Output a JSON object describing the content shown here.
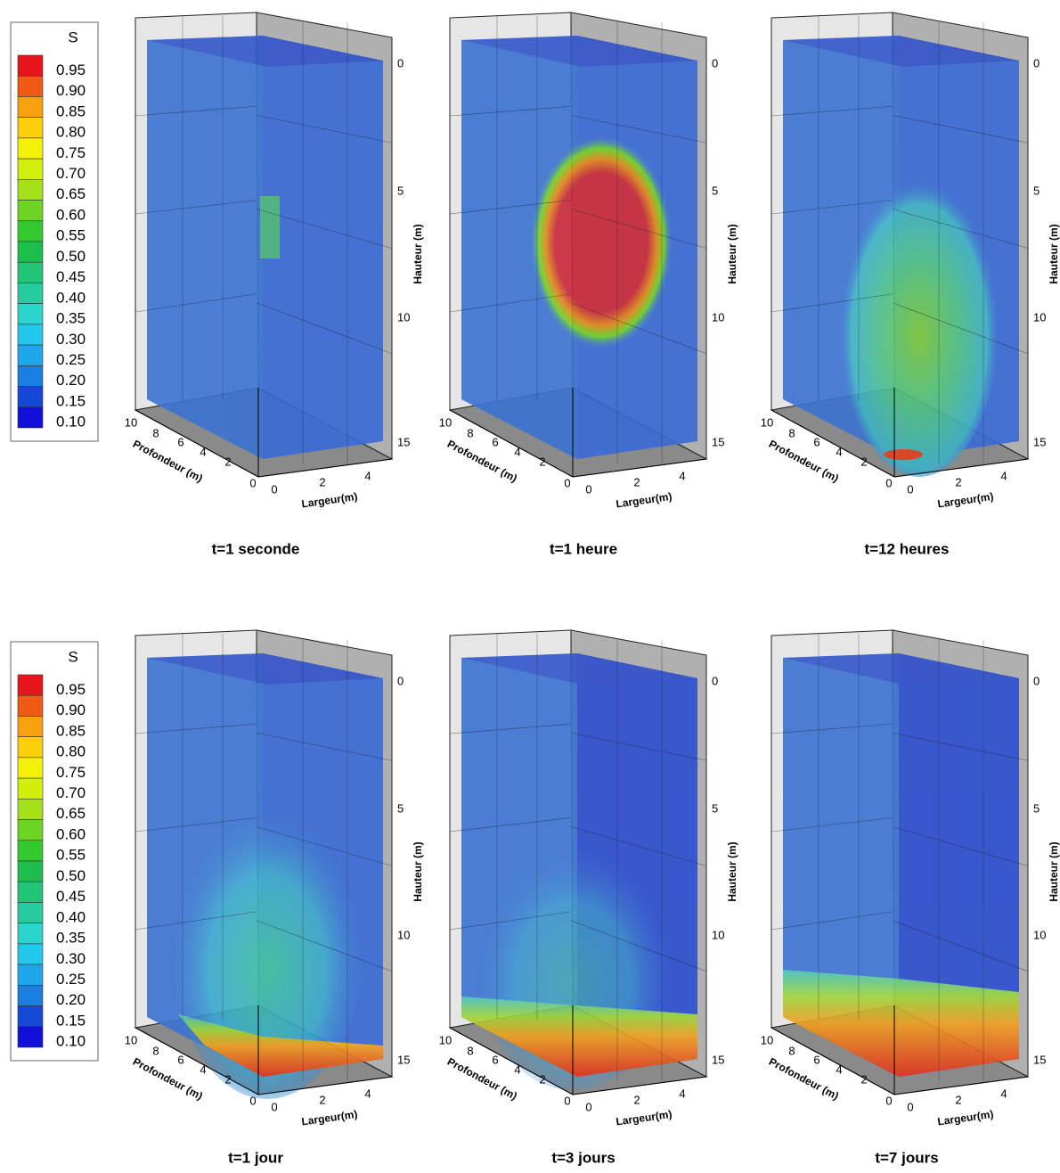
{
  "legend": {
    "title": "S",
    "levels": [
      {
        "label": "0.95",
        "color": "#e8141c"
      },
      {
        "label": "0.90",
        "color": "#f05a14"
      },
      {
        "label": "0.85",
        "color": "#f7a10e"
      },
      {
        "label": "0.80",
        "color": "#fbcf0a"
      },
      {
        "label": "0.75",
        "color": "#f4f00a"
      },
      {
        "label": "0.70",
        "color": "#d2ef0c"
      },
      {
        "label": "0.65",
        "color": "#a5e01a"
      },
      {
        "label": "0.60",
        "color": "#6dd424"
      },
      {
        "label": "0.55",
        "color": "#33c92f"
      },
      {
        "label": "0.50",
        "color": "#1dbf4c"
      },
      {
        "label": "0.45",
        "color": "#22c478"
      },
      {
        "label": "0.40",
        "color": "#27cba0"
      },
      {
        "label": "0.35",
        "color": "#2bd4cc"
      },
      {
        "label": "0.30",
        "color": "#22c7ea"
      },
      {
        "label": "0.25",
        "color": "#1ea6ea"
      },
      {
        "label": "0.20",
        "color": "#1a7fe0"
      },
      {
        "label": "0.15",
        "color": "#1548d6"
      },
      {
        "label": "0.10",
        "color": "#1010d8"
      }
    ]
  },
  "axes": {
    "height_label": "Hauteur (m)",
    "height_ticks": [
      "0",
      "5",
      "10",
      "15"
    ],
    "depth_label": "Profondeur (m)",
    "depth_ticks": [
      "10",
      "8",
      "6",
      "4",
      "2",
      "0"
    ],
    "width_label": "Largeur(m)",
    "width_ticks": [
      "0",
      "2",
      "4"
    ]
  },
  "panels": [
    {
      "caption": "t=1 seconde"
    },
    {
      "caption": "t=1 heure"
    },
    {
      "caption": "t=12 heures"
    },
    {
      "caption": "t=1 jour"
    },
    {
      "caption": "t=3 jours"
    },
    {
      "caption": "t=7 jours"
    }
  ]
}
